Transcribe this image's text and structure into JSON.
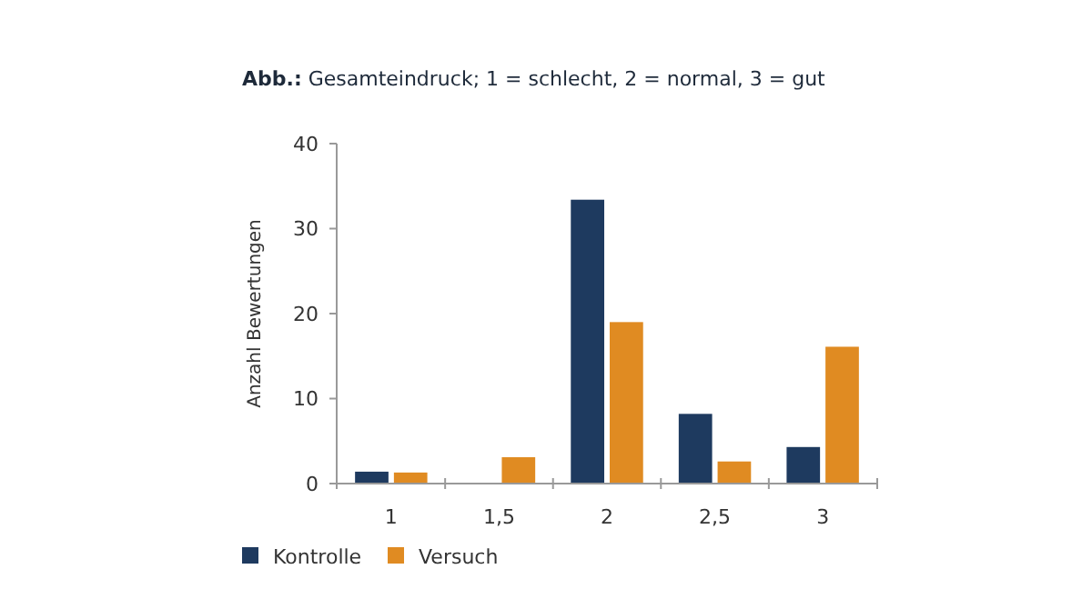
{
  "chart_data": {
    "type": "bar",
    "title": "Abb.: Gesamteindruck; 1 = schlecht, 2 = normal, 3 = gut",
    "ylabel": "Anzahl Bewertungen",
    "categories": [
      "1",
      "1,5",
      "2",
      "2,5",
      "3"
    ],
    "series": [
      {
        "name": "Kontrolle",
        "color": "#1e3a5f",
        "values": [
          1.4,
          0,
          33.4,
          8.2,
          4.3
        ]
      },
      {
        "name": "Versuch",
        "color": "#e08b22",
        "values": [
          1.3,
          3.1,
          19,
          2.6,
          16.1
        ]
      }
    ],
    "ylim": [
      0,
      40
    ],
    "yticks": [
      0,
      10,
      20,
      30,
      40
    ],
    "grid": false,
    "legend": "bottom left"
  }
}
